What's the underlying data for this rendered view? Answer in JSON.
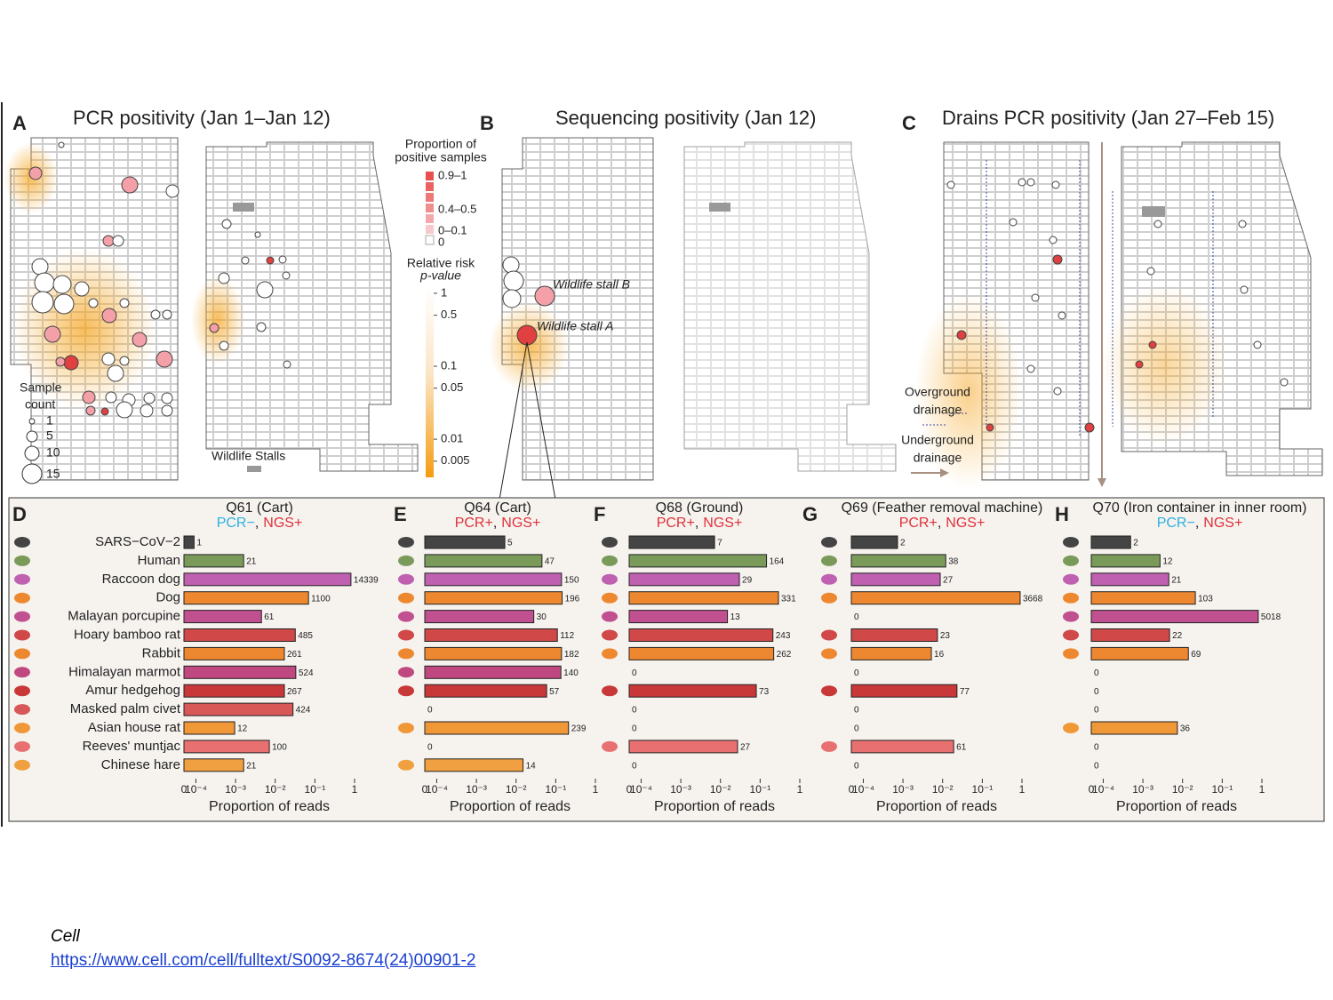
{
  "panels": {
    "A": "A",
    "B": "B",
    "C": "C"
  },
  "titles": {
    "A": "PCR positivity (Jan 1–Jan 12)",
    "B": "Sequencing positivity (Jan 12)",
    "C": "Drains PCR positivity (Jan 27–Feb 15)"
  },
  "proportion_legend": {
    "title": [
      "Proportion of",
      "positive samples"
    ],
    "labels": [
      "0.9–1",
      "0.4–0.5",
      "0–0.1",
      "0"
    ]
  },
  "pvalue_legend": {
    "title": "Relative risk",
    "subtitle": "p-value",
    "ticks": [
      1,
      0.5,
      0.1,
      0.05,
      0.01,
      0.005
    ],
    "lim": [
      0.003,
      1.25
    ]
  },
  "sample_legend": {
    "title": [
      "Sample",
      "count"
    ],
    "labels": [
      "1",
      "5",
      "10",
      "15"
    ]
  },
  "map_labels": {
    "stall_b": "Wildlife stall B",
    "stall_a": "Wildlife stall A",
    "stalls": "Wildlife Stalls",
    "overground": [
      "Overground",
      "drainage"
    ],
    "underground": [
      "Underground",
      "drainage"
    ]
  },
  "chart_data": [
    {
      "type": "bar",
      "panel": "D",
      "title": "Q61 (Cart)",
      "pcr": "PCR−",
      "sep": ",",
      "ngs": "NGS+",
      "pcr_color": "#2bb0e0",
      "ngs_color": "#e0303a",
      "categories": [
        "SARS−CoV−2",
        "Human",
        "Raccoon dog",
        "Dog",
        "Malayan porcupine",
        "Hoary bamboo rat",
        "Rabbit",
        "Himalayan marmot",
        "Amur hedgehog",
        "Masked palm civet",
        "Asian house rat",
        "Reeves' muntjac",
        "Chinese hare"
      ],
      "values": [
        9e-05,
        0.0016,
        0.81,
        0.069,
        0.0045,
        0.032,
        0.017,
        0.033,
        0.017,
        0.028,
        0.00095,
        0.0071,
        0.0016
      ],
      "reads": [
        1,
        21,
        14339,
        1100,
        61,
        485,
        261,
        524,
        267,
        424,
        12,
        100,
        21
      ],
      "colors": [
        "#444444",
        "#7a9a5a",
        "#c060b0",
        "#ee8830",
        "#c05090",
        "#d04848",
        "#ee8830",
        "#c04880",
        "#c83838",
        "#d85858",
        "#f09838",
        "#e87070",
        "#f0a040"
      ],
      "xlabel": "Proportion of reads",
      "log": true,
      "xlim": [
        5e-05,
        1
      ],
      "zero_label": "0",
      "xticks": [
        {
          "value": 0.0001,
          "label": "10⁻⁴"
        },
        {
          "value": 0.001,
          "label": "10⁻³"
        },
        {
          "value": 0.01,
          "label": "10⁻²"
        },
        {
          "value": 0.1,
          "label": "10⁻¹"
        },
        1
      ]
    },
    {
      "type": "bar",
      "panel": "E",
      "title": "Q64 (Cart)",
      "pcr": "PCR+",
      "sep": ",",
      "ngs": "NGS+",
      "pcr_color": "#e0303a",
      "ngs_color": "#e0303a",
      "values": [
        0.0052,
        0.045,
        0.14,
        0.145,
        0.028,
        0.11,
        0.14,
        0.135,
        0.059,
        0,
        0.21,
        0,
        0.015
      ],
      "reads": [
        5,
        47,
        150,
        196,
        30,
        112,
        182,
        140,
        57,
        0,
        239,
        0,
        14
      ],
      "colors": [
        "#444444",
        "#7a9a5a",
        "#c060b0",
        "#ee8830",
        "#c05090",
        "#d04848",
        "#ee8830",
        "#c04880",
        "#c83838",
        "#d85858",
        "#f09838",
        "#e87070",
        "#f0a040"
      ],
      "xlabel": "Proportion of reads",
      "log": true,
      "xlim": [
        5e-05,
        1
      ],
      "zero_label": "0",
      "xticks": [
        {
          "value": 0.0001,
          "label": "10⁻⁴"
        },
        {
          "value": 0.001,
          "label": "10⁻³"
        },
        {
          "value": 0.01,
          "label": "10⁻²"
        },
        {
          "value": 0.1,
          "label": "10⁻¹"
        },
        1
      ]
    },
    {
      "type": "bar",
      "panel": "F",
      "title": "Q68 (Ground)",
      "pcr": "PCR+",
      "sep": ",",
      "ngs": "NGS+",
      "pcr_color": "#e0303a",
      "ngs_color": "#e0303a",
      "values": [
        0.0071,
        0.145,
        0.03,
        0.29,
        0.015,
        0.21,
        0.22,
        0,
        0.08,
        0,
        0,
        0.027,
        0
      ],
      "reads": [
        7,
        164,
        29,
        331,
        13,
        243,
        262,
        0,
        73,
        0,
        0,
        27,
        0
      ],
      "colors": [
        "#444444",
        "#7a9a5a",
        "#c060b0",
        "#ee8830",
        "#c05090",
        "#d04848",
        "#ee8830",
        "#c04880",
        "#c83838",
        "#d85858",
        "#f09838",
        "#e87070",
        "#f0a040"
      ],
      "xlabel": "Proportion of reads",
      "log": true,
      "xlim": [
        5e-05,
        1
      ],
      "zero_label": "0",
      "xticks": [
        {
          "value": 0.0001,
          "label": "10⁻⁴"
        },
        {
          "value": 0.001,
          "label": "10⁻³"
        },
        {
          "value": 0.01,
          "label": "10⁻²"
        },
        {
          "value": 0.1,
          "label": "10⁻¹"
        },
        1
      ]
    },
    {
      "type": "bar",
      "panel": "G",
      "title": "Q69 (Feather removal machine)",
      "pcr": "PCR+",
      "sep": ",",
      "ngs": "NGS+",
      "pcr_color": "#e0303a",
      "ngs_color": "#e0303a",
      "values": [
        0.00073,
        0.012,
        0.0087,
        0.9,
        0,
        0.0074,
        0.0052,
        0,
        0.023,
        0,
        0,
        0.019,
        0
      ],
      "reads": [
        2,
        38,
        27,
        3668,
        0,
        23,
        16,
        0,
        77,
        0,
        0,
        61,
        0
      ],
      "colors": [
        "#444444",
        "#7a9a5a",
        "#c060b0",
        "#ee8830",
        "#c05090",
        "#d04848",
        "#ee8830",
        "#c04880",
        "#c83838",
        "#d85858",
        "#f09838",
        "#e87070",
        "#f0a040"
      ],
      "xlabel": "Proportion of reads",
      "log": true,
      "xlim": [
        5e-05,
        1
      ],
      "zero_label": "0",
      "xticks": [
        {
          "value": 0.0001,
          "label": "10⁻⁴"
        },
        {
          "value": 0.001,
          "label": "10⁻³"
        },
        {
          "value": 0.01,
          "label": "10⁻²"
        },
        {
          "value": 0.1,
          "label": "10⁻¹"
        },
        1
      ]
    },
    {
      "type": "bar",
      "panel": "H",
      "title": "Q70 (Iron container in inner room)",
      "pcr": "PCR−",
      "sep": ",",
      "ngs": "NGS+",
      "pcr_color": "#2bb0e0",
      "ngs_color": "#e0303a",
      "values": [
        0.00049,
        0.0027,
        0.0045,
        0.021,
        0.81,
        0.0047,
        0.014,
        0,
        0,
        0,
        0.0074,
        0,
        0
      ],
      "reads": [
        2,
        12,
        21,
        103,
        5018,
        22,
        69,
        0,
        0,
        0,
        36,
        0,
        0
      ],
      "colors": [
        "#444444",
        "#7a9a5a",
        "#c060b0",
        "#ee8830",
        "#c05090",
        "#d04848",
        "#ee8830",
        "#c04880",
        "#c83838",
        "#d85858",
        "#f09838",
        "#e87070",
        "#f0a040"
      ],
      "xlabel": "Proportion of reads",
      "log": true,
      "xlim": [
        5e-05,
        1
      ],
      "zero_label": "0",
      "xticks": [
        {
          "value": 0.0001,
          "label": "10⁻⁴"
        },
        {
          "value": 0.001,
          "label": "10⁻³"
        },
        {
          "value": 0.01,
          "label": "10⁻²"
        },
        {
          "value": 0.1,
          "label": "10⁻¹"
        },
        1
      ]
    }
  ],
  "footer": {
    "journal": "Cell",
    "link": "https://www.cell.com/cell/fulltext/S0092-8674(24)00901-2"
  }
}
